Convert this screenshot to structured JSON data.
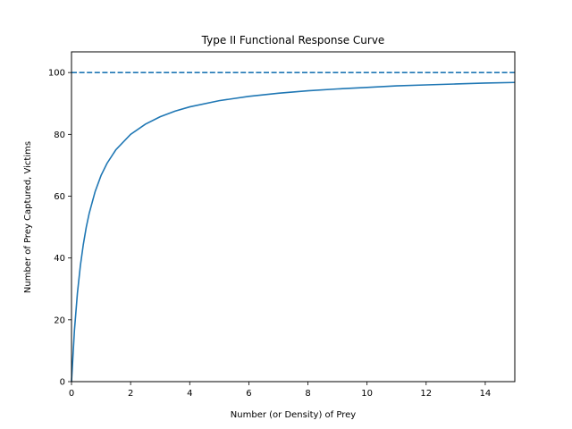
{
  "chart_data": {
    "type": "line",
    "title": "Type II Functional Response Curve",
    "xlabel": "Number (or Density) of Prey",
    "ylabel": "Number of Prey Captured, Victims",
    "xlim": [
      0,
      15
    ],
    "ylim": [
      0,
      106.7
    ],
    "xticks": [
      0,
      2,
      4,
      6,
      8,
      10,
      12,
      14
    ],
    "yticks": [
      0,
      20,
      40,
      60,
      80,
      100
    ],
    "grid": false,
    "series": [
      {
        "style": "solid",
        "color": "#1f77b4",
        "x": [
          0,
          0.1,
          0.2,
          0.3,
          0.4,
          0.5,
          0.6,
          0.8,
          1.0,
          1.2,
          1.5,
          2.0,
          2.5,
          3.0,
          3.5,
          4.0,
          5.0,
          6.0,
          7.0,
          8.0,
          9.0,
          10.0,
          11.0,
          12.0,
          13.0,
          14.0,
          15.0
        ],
        "y": [
          0,
          16.7,
          28.6,
          37.5,
          44.4,
          50.0,
          54.5,
          61.5,
          66.7,
          70.6,
          75.0,
          80.0,
          83.3,
          85.7,
          87.5,
          88.9,
          90.9,
          92.3,
          93.3,
          94.1,
          94.7,
          95.2,
          95.7,
          96.0,
          96.3,
          96.6,
          96.8
        ]
      },
      {
        "style": "dashed",
        "color": "#1f77b4",
        "x": [
          0,
          15
        ],
        "y": [
          100,
          100
        ]
      }
    ]
  }
}
